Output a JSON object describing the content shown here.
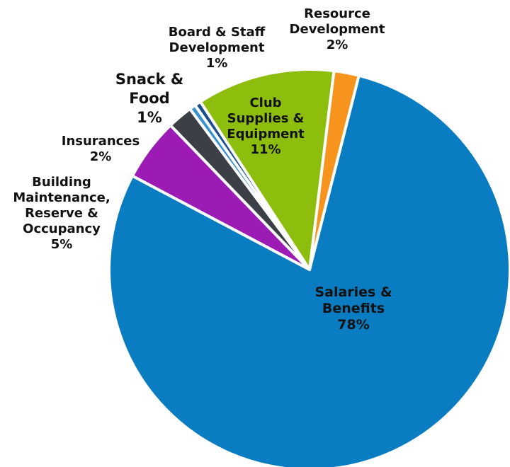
{
  "chart_data": {
    "type": "pie",
    "title": "",
    "slices": [
      {
        "label_lines": [
          "Resource",
          "Development"
        ],
        "value": 2,
        "value_label": "2%",
        "color": "#f7941d"
      },
      {
        "label_lines": [
          "Salaries &",
          "Benefits"
        ],
        "value": 78,
        "value_label": "78%",
        "color": "#0a7cc2"
      },
      {
        "label_lines": [
          "Building",
          "Maintenance,",
          "Reserve &",
          "Occupancy"
        ],
        "value": 5,
        "value_label": "5%",
        "color": "#9c1bb5"
      },
      {
        "label_lines": [
          "Insurances"
        ],
        "value": 2,
        "value_label": "2%",
        "color": "#3d3f46"
      },
      {
        "label_lines": [
          "Snack &",
          "Food"
        ],
        "value": 0.5,
        "value_label": "1%",
        "color": "#3a93d0"
      },
      {
        "label_lines": [
          "Board & Staff",
          "Development"
        ],
        "value": 0.5,
        "value_label": "1%",
        "color": "#1b4e8c"
      },
      {
        "label_lines": [
          "Club",
          "Supplies &",
          "Equipment"
        ],
        "value": 11,
        "value_label": "11%",
        "color": "#8dbe0d"
      }
    ]
  }
}
